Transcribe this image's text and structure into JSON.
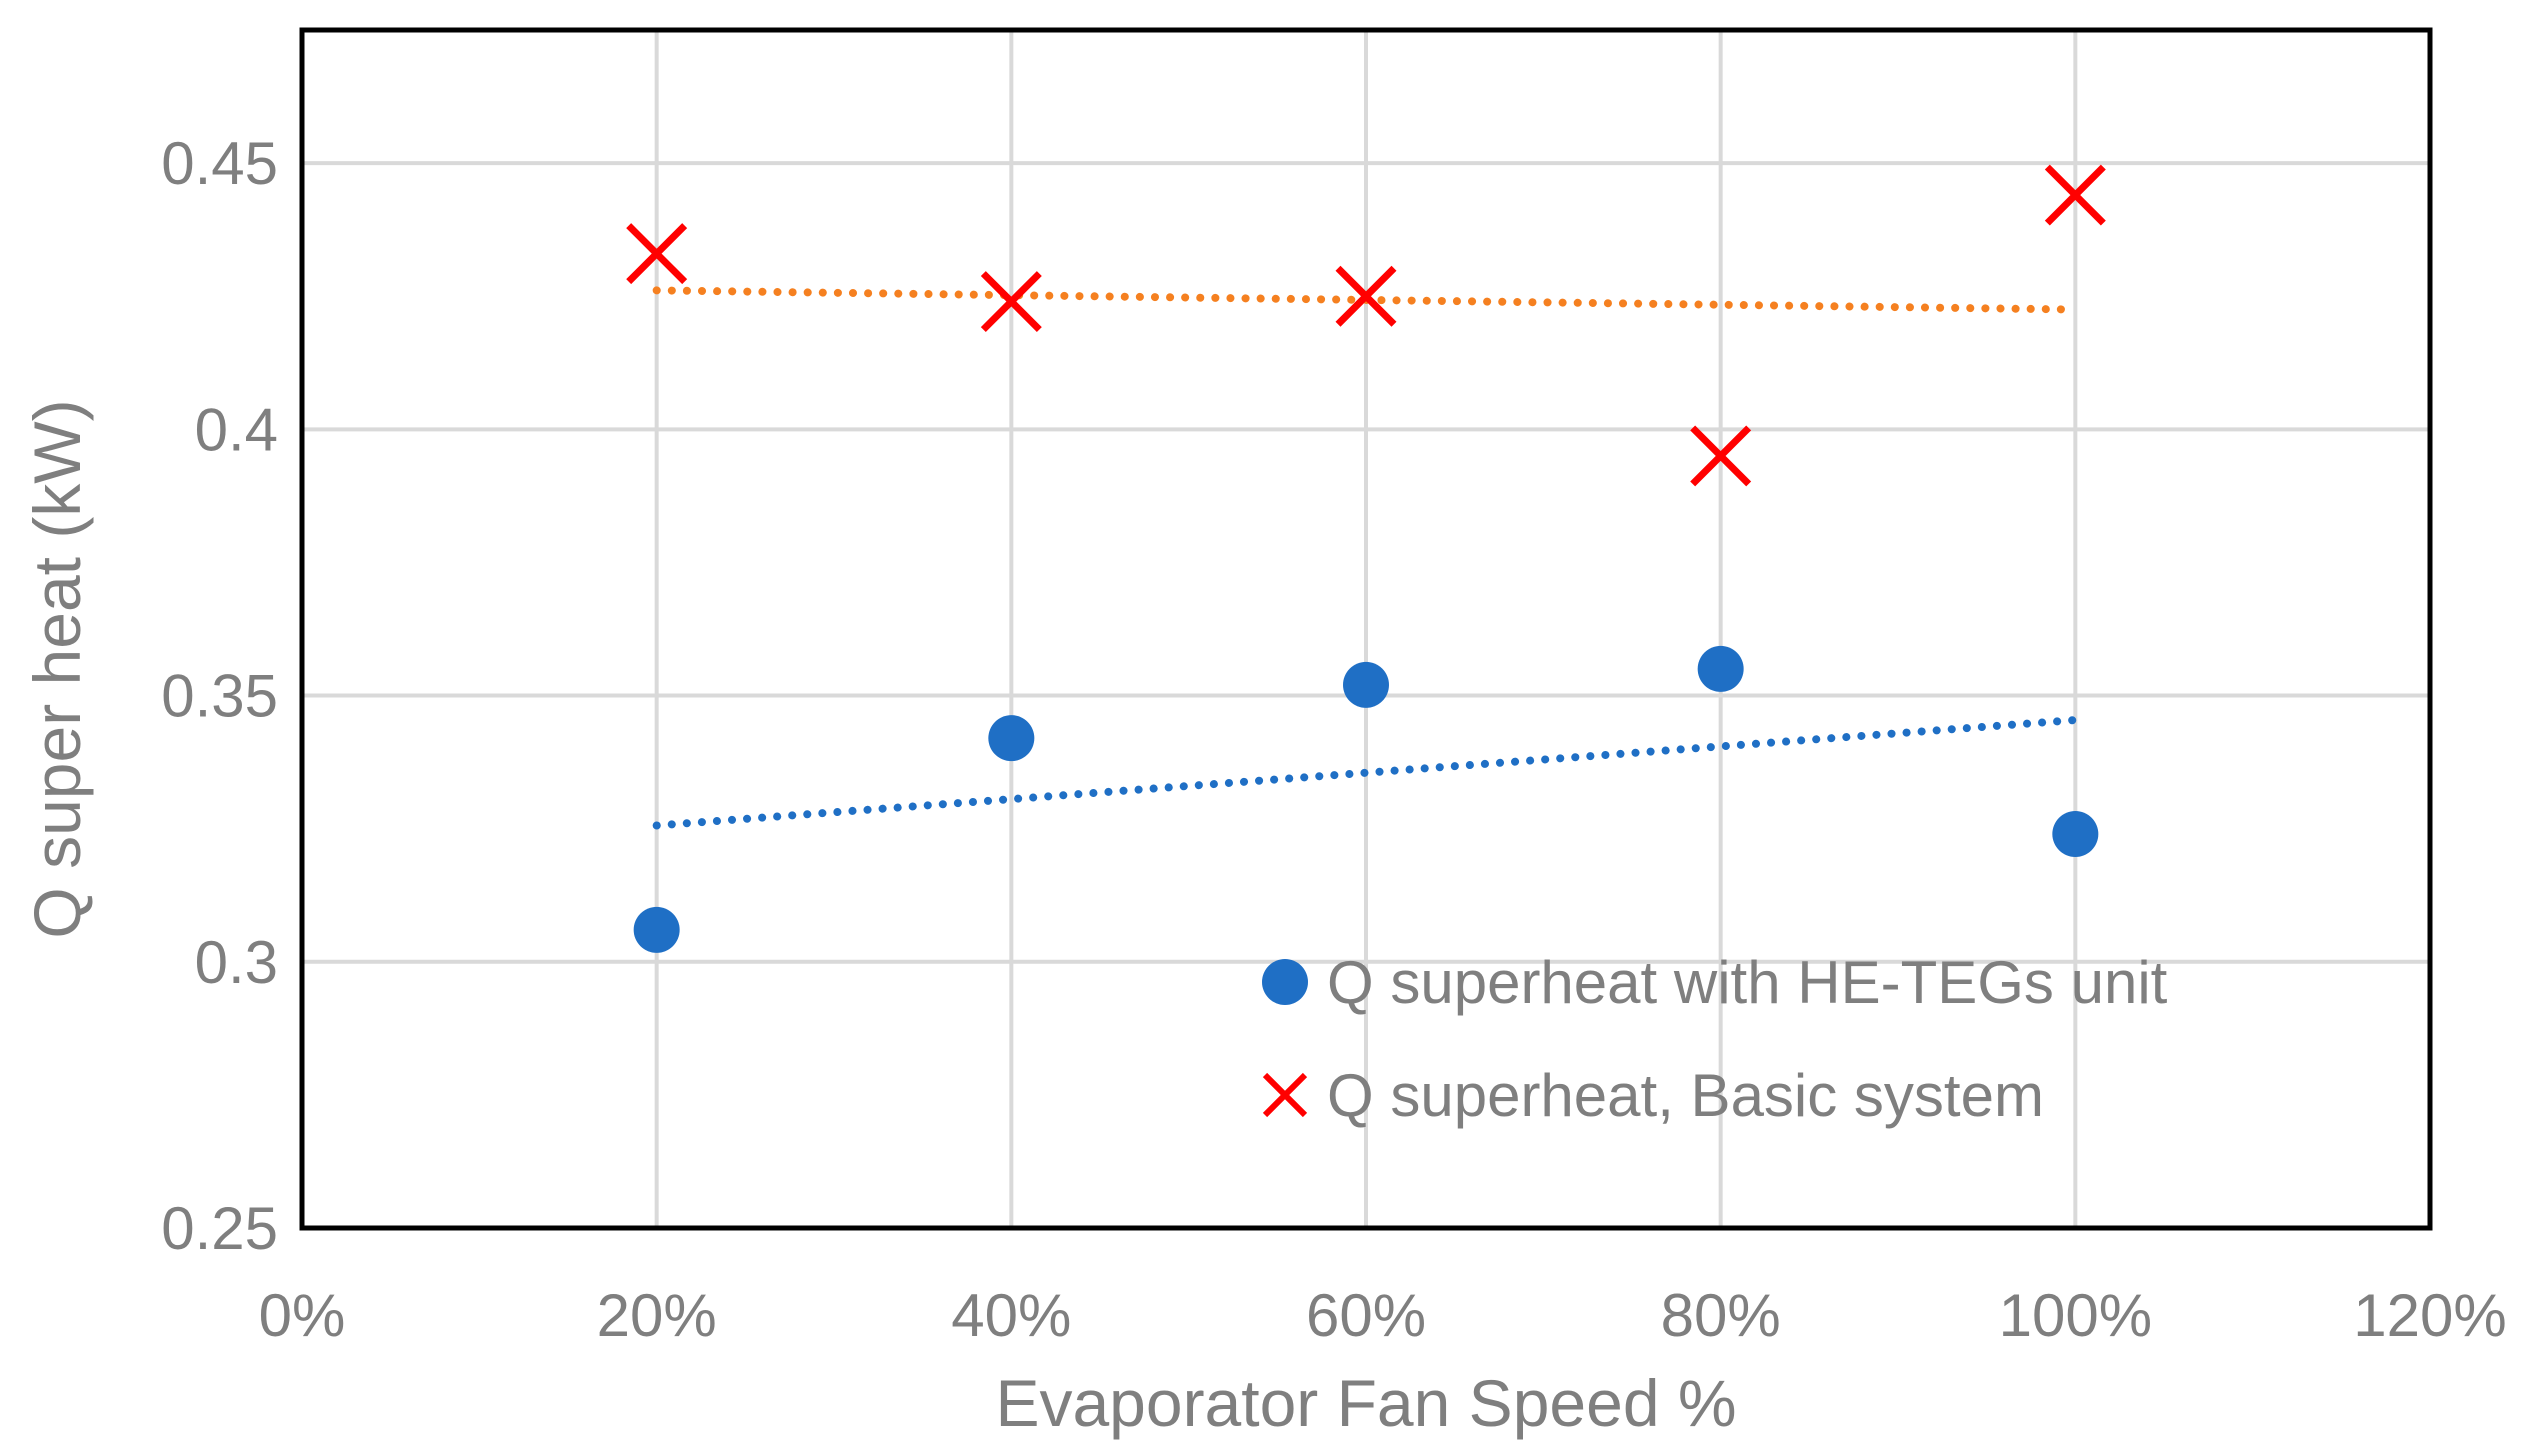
{
  "chart_data": {
    "type": "scatter",
    "title": "",
    "xlabel": "Evaporator Fan Speed %",
    "ylabel": "Q super heat (kW)",
    "xlim": [
      0,
      1.2
    ],
    "ylim": [
      0.25,
      0.475
    ],
    "x_ticks": [
      0,
      0.2,
      0.4,
      0.6,
      0.8,
      1.0,
      1.2
    ],
    "x_tick_labels": [
      "0%",
      "20%",
      "40%",
      "60%",
      "80%",
      "100%",
      "120%"
    ],
    "y_ticks": [
      0.25,
      0.3,
      0.35,
      0.4,
      0.45
    ],
    "y_tick_labels": [
      "0.25",
      "0.3",
      "0.35",
      "0.4",
      "0.45"
    ],
    "grid": true,
    "legend_position": "bottom-right",
    "series": [
      {
        "name": "Q superheat with HE-TEGs unit",
        "marker": "circle",
        "color": "#1f6fc5",
        "trendline_color": "#1f6fc5",
        "x": [
          0.2,
          0.4,
          0.6,
          0.8,
          1.0
        ],
        "y": [
          0.306,
          0.342,
          0.352,
          0.355,
          0.324
        ],
        "trendline": {
          "type": "linear",
          "x": [
            0.2,
            1.0
          ],
          "y": [
            0.3256,
            0.3454
          ]
        }
      },
      {
        "name": "Q superheat, Basic system",
        "marker": "x",
        "color": "#ff0000",
        "trendline_color": "#f58020",
        "x": [
          0.2,
          0.4,
          0.6,
          0.8,
          1.0
        ],
        "y": [
          0.433,
          0.424,
          0.425,
          0.395,
          0.444
        ],
        "trendline": {
          "type": "linear",
          "x": [
            0.2,
            1.0
          ],
          "y": [
            0.4261,
            0.4225
          ]
        }
      }
    ]
  }
}
